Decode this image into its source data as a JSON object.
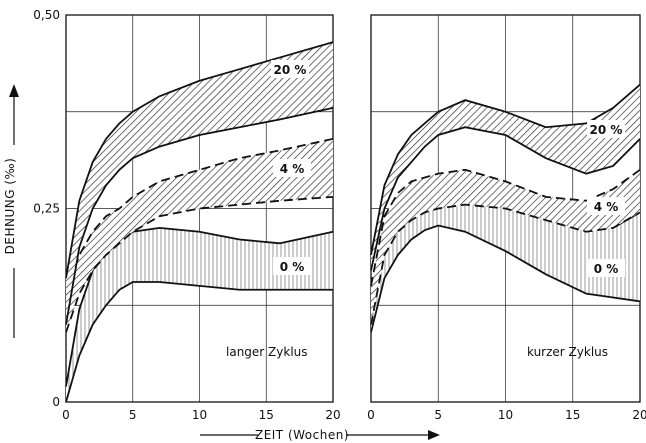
{
  "axes": {
    "ylabel": "DEHNUNG (‰)",
    "xlabel": "ZEIT (Wochen)",
    "y_ticks": [
      "0",
      "0,25",
      "0,50"
    ],
    "x_ticks": [
      "0",
      "5",
      "10",
      "15",
      "20"
    ]
  },
  "chart_data": [
    {
      "type": "area",
      "panel_label": "langer Zyklus",
      "xlim": [
        0,
        20
      ],
      "ylim": [
        0,
        0.5
      ],
      "grid": true,
      "x": [
        0,
        1,
        2,
        3,
        4,
        5,
        7,
        10,
        13,
        16,
        20
      ],
      "series": [
        {
          "name": "20 %",
          "label": "20 %",
          "fill": "diagonal-hatch",
          "line": "solid",
          "upper": [
            0.16,
            0.26,
            0.31,
            0.34,
            0.36,
            0.375,
            0.395,
            0.415,
            0.43,
            0.445,
            0.465
          ],
          "lower": [
            0.1,
            0.2,
            0.25,
            0.28,
            0.3,
            0.315,
            0.33,
            0.345,
            0.355,
            0.365,
            0.38
          ]
        },
        {
          "name": "4 %",
          "label": "4 %",
          "fill": "diagonal-hatch",
          "line": "dashed",
          "upper": [
            0.14,
            0.19,
            0.22,
            0.24,
            0.25,
            0.265,
            0.285,
            0.3,
            0.315,
            0.325,
            0.34
          ],
          "lower": [
            0.09,
            0.14,
            0.17,
            0.19,
            0.205,
            0.22,
            0.24,
            0.25,
            0.255,
            0.26,
            0.265
          ]
        },
        {
          "name": "0 %",
          "label": "0 %",
          "fill": "vertical-stripes",
          "line": "solid",
          "upper": [
            0.02,
            0.12,
            0.17,
            0.2,
            0.21,
            0.22,
            0.225,
            0.22,
            0.21,
            0.205,
            0.22
          ],
          "lower": [
            0.0,
            0.06,
            0.1,
            0.125,
            0.145,
            0.155,
            0.155,
            0.15,
            0.145,
            0.145,
            0.145
          ]
        }
      ]
    },
    {
      "type": "area",
      "panel_label": "kurzer Zyklus",
      "xlim": [
        0,
        20
      ],
      "ylim": [
        0,
        0.5
      ],
      "grid": true,
      "x": [
        0,
        1,
        2,
        3,
        4,
        5,
        7,
        10,
        13,
        16,
        18,
        20
      ],
      "series": [
        {
          "name": "20 %",
          "label": "20 %",
          "fill": "diagonal-hatch",
          "line": "solid",
          "upper": [
            0.19,
            0.28,
            0.32,
            0.345,
            0.36,
            0.375,
            0.39,
            0.375,
            0.355,
            0.36,
            0.38,
            0.41
          ],
          "lower": [
            0.17,
            0.25,
            0.29,
            0.31,
            0.33,
            0.345,
            0.355,
            0.345,
            0.315,
            0.295,
            0.305,
            0.34
          ]
        },
        {
          "name": "4 %",
          "label": "4 %",
          "fill": "diagonal-hatch",
          "line": "dashed",
          "upper": [
            0.15,
            0.24,
            0.27,
            0.285,
            0.29,
            0.295,
            0.3,
            0.285,
            0.265,
            0.26,
            0.275,
            0.3
          ],
          "lower": [
            0.1,
            0.19,
            0.22,
            0.235,
            0.245,
            0.25,
            0.255,
            0.25,
            0.235,
            0.22,
            0.225,
            0.245
          ]
        },
        {
          "name": "0 %",
          "label": "0 %",
          "fill": "vertical-stripes",
          "line": "solid",
          "upper": [
            0.14,
            0.22,
            0.25,
            0.265,
            0.275,
            0.28,
            0.28,
            0.265,
            0.245,
            0.23,
            0.225,
            0.245
          ],
          "lower": [
            0.09,
            0.16,
            0.19,
            0.21,
            0.222,
            0.228,
            0.22,
            0.195,
            0.165,
            0.14,
            0.135,
            0.13
          ]
        }
      ]
    }
  ]
}
